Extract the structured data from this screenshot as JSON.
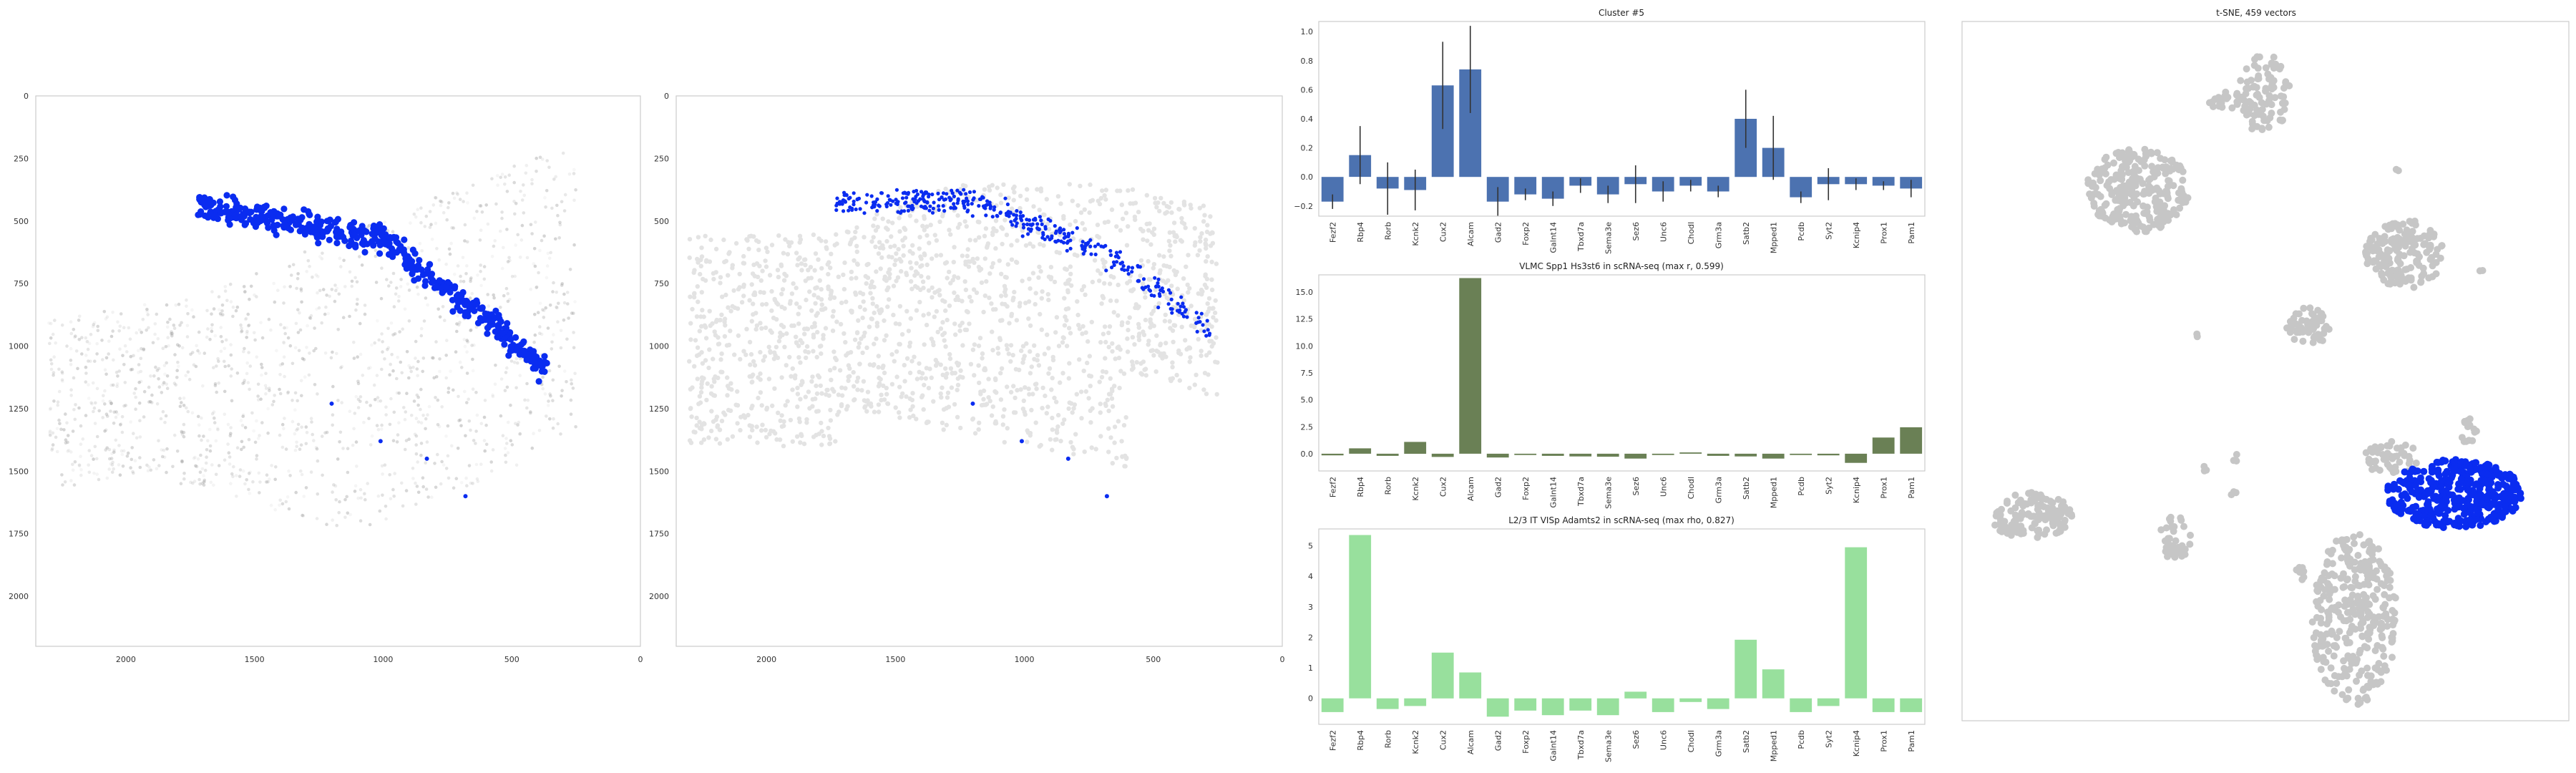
{
  "chart_data": [
    {
      "type": "scatter",
      "title": "",
      "xlabel": "",
      "ylabel": "",
      "xlim": [
        2350,
        0
      ],
      "ylim": [
        2200,
        0
      ],
      "xticks": [
        2000,
        1500,
        1000,
        500,
        0
      ],
      "yticks": [
        0,
        250,
        500,
        750,
        1000,
        1250,
        1500,
        1750,
        2000
      ],
      "series": [
        {
          "role": "background spots",
          "color": "#9a9a9a"
        },
        {
          "role": "cluster #5 spots",
          "color": "#0a2cf0"
        }
      ],
      "grid": false
    },
    {
      "type": "scatter",
      "title": "",
      "xlabel": "",
      "ylabel": "",
      "xlim": [
        2350,
        0
      ],
      "ylim": [
        2200,
        0
      ],
      "xticks": [
        2000,
        1500,
        1000,
        500,
        0
      ],
      "yticks": [
        0,
        250,
        500,
        750,
        1000,
        1250,
        1500,
        1750,
        2000
      ],
      "series": [
        {
          "role": "background cells",
          "color": "#e3e3e3"
        },
        {
          "role": "cluster #5 cells",
          "color": "#0a2cf0"
        }
      ],
      "grid": false
    },
    {
      "type": "bar",
      "title": "Cluster #5",
      "categories": [
        "Fezf2",
        "Rbp4",
        "Rorb",
        "Kcnk2",
        "Cux2",
        "Alcam",
        "Gad2",
        "Foxp2",
        "Galnt14",
        "Tbxd7a",
        "Sema3e",
        "Sez6",
        "Unc6",
        "Chodl",
        "Grm3a",
        "Satb2",
        "Mpped1",
        "Pcdb",
        "Syt2",
        "Kcnip4",
        "Prox1",
        "Pam1"
      ],
      "values": [
        -0.17,
        0.15,
        -0.08,
        -0.09,
        0.63,
        0.74,
        -0.17,
        -0.12,
        -0.15,
        -0.06,
        -0.12,
        -0.05,
        -0.1,
        -0.06,
        -0.1,
        0.4,
        0.2,
        -0.14,
        -0.05,
        -0.05,
        -0.06,
        -0.08
      ],
      "errors": [
        0.05,
        0.2,
        0.18,
        0.14,
        0.3,
        0.3,
        0.1,
        0.04,
        0.05,
        0.05,
        0.06,
        0.13,
        0.07,
        0.04,
        0.04,
        0.2,
        0.22,
        0.04,
        0.11,
        0.04,
        0.03,
        0.06
      ],
      "ylim": [
        -0.27,
        1.07
      ],
      "yticks": [
        -0.2,
        0.0,
        0.2,
        0.4,
        0.6,
        0.8,
        1.0
      ],
      "ytick_labels": [
        "−0.2",
        "0.0",
        "0.2",
        "0.4",
        "0.6",
        "0.8",
        "1.0"
      ],
      "color": "#4c72b0",
      "grid": false
    },
    {
      "type": "bar",
      "title": "VLMC Spp1 Hs3st6 in scRNA-seq (max r, 0.599)",
      "categories": [
        "Fezf2",
        "Rbp4",
        "Rorb",
        "Kcnk2",
        "Cux2",
        "Alcam",
        "Gad2",
        "Foxp2",
        "Galnt14",
        "Tbxd7a",
        "Sema3e",
        "Sez6",
        "Unc6",
        "Chodl",
        "Grm3a",
        "Satb2",
        "Mpped1",
        "Pcdb",
        "Syt2",
        "Kcnip4",
        "Prox1",
        "Pam1"
      ],
      "values": [
        -0.15,
        0.5,
        -0.2,
        1.1,
        -0.3,
        16.3,
        -0.35,
        -0.12,
        -0.2,
        -0.25,
        -0.28,
        -0.45,
        -0.12,
        0.12,
        -0.2,
        -0.25,
        -0.45,
        -0.12,
        -0.15,
        -0.85,
        1.5,
        2.45
      ],
      "ylim": [
        -1.6,
        16.6
      ],
      "yticks": [
        0,
        2.5,
        5,
        7.5,
        10,
        12.5,
        15
      ],
      "ytick_labels": [
        "0.0",
        "2.5",
        "5.0",
        "7.5",
        "10.0",
        "12.5",
        "15.0"
      ],
      "color": "#6a8055",
      "grid": false
    },
    {
      "type": "bar",
      "title": "L2/3 IT VISp Adamts2 in scRNA-seq (max rho, 0.827)",
      "categories": [
        "Fezf2",
        "Rbp4",
        "Rorb",
        "Kcnk2",
        "Cux2",
        "Alcam",
        "Gad2",
        "Foxp2",
        "Galnt14",
        "Tbxd7a",
        "Sema3e",
        "Sez6",
        "Unc6",
        "Chodl",
        "Grm3a",
        "Satb2",
        "Mpped1",
        "Pcdb",
        "Syt2",
        "Kcnip4",
        "Prox1",
        "Pam1"
      ],
      "values": [
        -0.45,
        5.35,
        -0.35,
        -0.25,
        1.5,
        0.85,
        -0.6,
        -0.4,
        -0.55,
        -0.4,
        -0.55,
        0.22,
        -0.45,
        -0.12,
        -0.35,
        1.92,
        0.95,
        -0.45,
        -0.25,
        4.95,
        -0.45,
        -0.45
      ],
      "ylim": [
        -0.85,
        5.55
      ],
      "yticks": [
        0,
        1,
        2,
        3,
        4,
        5
      ],
      "ytick_labels": [
        "0",
        "1",
        "2",
        "3",
        "4",
        "5"
      ],
      "color": "#98e09d",
      "grid": false
    },
    {
      "type": "scatter",
      "title": "t-SNE, 459 vectors",
      "xlabel": "",
      "ylabel": "",
      "series": [
        {
          "role": "all vectors",
          "color": "#c6c6c6"
        },
        {
          "role": "cluster #5 vectors",
          "color": "#0a2cf0"
        }
      ],
      "axes_ticks": false,
      "grid": false
    }
  ]
}
